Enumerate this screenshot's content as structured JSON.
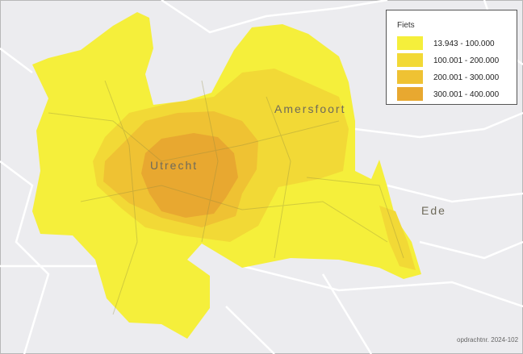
{
  "legend": {
    "title": "Fiets",
    "items": [
      {
        "label": "13.943 - 100.000",
        "color": "#f5ef3b"
      },
      {
        "label": "100.001 - 200.000",
        "color": "#f2d936"
      },
      {
        "label": "200.001 - 300.000",
        "color": "#efc233"
      },
      {
        "label": "300.001 - 400.000",
        "color": "#e8a830"
      }
    ]
  },
  "places": [
    {
      "label": "Utrecht"
    },
    {
      "label": "Amersfoort"
    },
    {
      "label": "Ede"
    }
  ],
  "footer": "opdrachtnr. 2024-102"
}
